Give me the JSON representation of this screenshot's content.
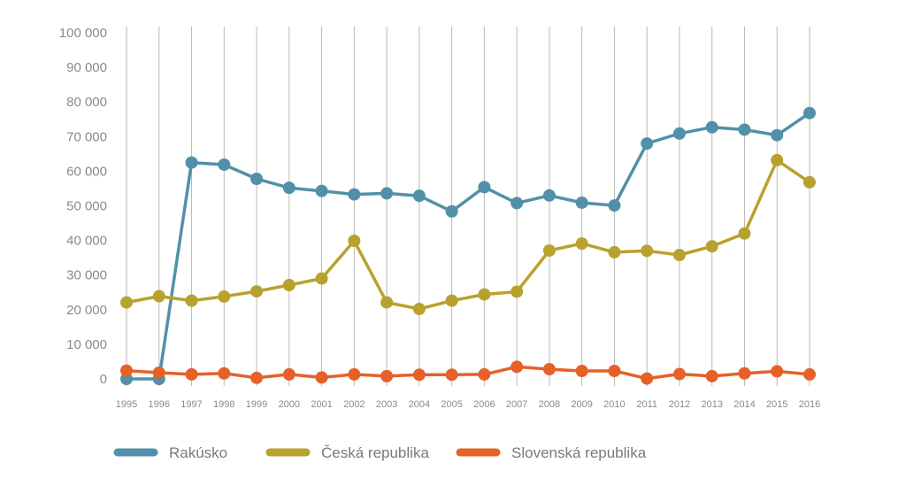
{
  "chart_data": {
    "type": "line",
    "title": "",
    "xlabel": "",
    "ylabel": "",
    "x": [
      "1995",
      "1996",
      "1997",
      "1998",
      "1999",
      "2000",
      "2001",
      "2002",
      "2003",
      "2004",
      "2005",
      "2006",
      "2007",
      "2008",
      "2009",
      "2010",
      "2011",
      "2012",
      "2013",
      "2014",
      "2015",
      "2016"
    ],
    "ylim": [
      0,
      100000
    ],
    "yticks": [
      {
        "value": 0,
        "label": "0"
      },
      {
        "value": 10000,
        "label": "10 000"
      },
      {
        "value": 20000,
        "label": "20 000"
      },
      {
        "value": 30000,
        "label": "30 000"
      },
      {
        "value": 40000,
        "label": "40 000"
      },
      {
        "value": 50000,
        "label": "50 000"
      },
      {
        "value": 60000,
        "label": "60 000"
      },
      {
        "value": 70000,
        "label": "70 000"
      },
      {
        "value": 80000,
        "label": "80 000"
      },
      {
        "value": 90000,
        "label": "90 000"
      },
      {
        "value": 100000,
        "label": "100 000"
      }
    ],
    "grid": "vertical",
    "legend_position": "bottom",
    "series": [
      {
        "name": "Rakúsko",
        "color": "#5290a9",
        "values": [
          0,
          0,
          62500,
          61900,
          57800,
          55200,
          54300,
          53300,
          53600,
          52900,
          48400,
          55400,
          50800,
          53000,
          50900,
          50100,
          68000,
          70900,
          72700,
          72000,
          70400,
          76800
        ]
      },
      {
        "name": "Česká republika",
        "color": "#b8a22e",
        "values": [
          22100,
          23900,
          22600,
          23800,
          25300,
          27100,
          29000,
          39900,
          22100,
          20200,
          22600,
          24400,
          25200,
          37100,
          39100,
          36600,
          37000,
          35800,
          38300,
          42000,
          63200,
          56800
        ]
      },
      {
        "name": "Slovenská republika",
        "color": "#e56128",
        "values": [
          2400,
          1800,
          1300,
          1600,
          300,
          1300,
          400,
          1300,
          800,
          1200,
          1200,
          1300,
          3500,
          2800,
          2300,
          2300,
          100,
          1400,
          800,
          1600,
          2200,
          1300
        ]
      }
    ]
  }
}
